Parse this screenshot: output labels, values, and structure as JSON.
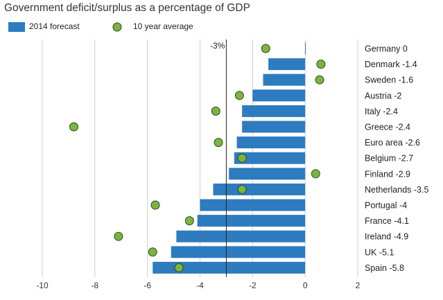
{
  "chart_data": {
    "type": "bar",
    "title": "Government deficit/surplus as a percentage of GDP",
    "orientation": "horizontal",
    "categories": [
      "Germany 0",
      "Denmark -1.4",
      "Sweden -1.6",
      "Austria -2",
      "Italy -2.4",
      "Greece -2.4",
      "Euro area -2.6",
      "Belgium -2.7",
      "Finland -2.9",
      "Netherlands -3.5",
      "Portugal -4",
      "France -4.1",
      "Ireland -4.9",
      "UK -5.1",
      "Spain -5.8"
    ],
    "series": [
      {
        "name": "2014 forecast",
        "type": "bar",
        "color": "#2e7bbf",
        "values": [
          0,
          -1.4,
          -1.6,
          -2,
          -2.4,
          -2.4,
          -2.6,
          -2.7,
          -2.9,
          -3.5,
          -4,
          -4.1,
          -4.9,
          -5.1,
          -5.8
        ]
      },
      {
        "name": "10 year average",
        "type": "scatter",
        "color": "#7cb342",
        "values": [
          -1.5,
          0.6,
          0.55,
          -2.5,
          -3.4,
          -8.8,
          -3.3,
          -2.4,
          0.4,
          -2.4,
          -5.7,
          -4.4,
          -7.1,
          -5.8,
          -4.8
        ]
      }
    ],
    "xlim": [
      -10,
      2
    ],
    "xticks": [
      "-10",
      "-8",
      "-6",
      "-4",
      "-2",
      "0",
      "2"
    ],
    "xtick_values": [
      -10,
      -8,
      -6,
      -4,
      -2,
      0,
      2
    ],
    "reference_line": {
      "value": -3,
      "label": "-3%"
    },
    "grid": "vertical",
    "legend_position": "top-left"
  }
}
